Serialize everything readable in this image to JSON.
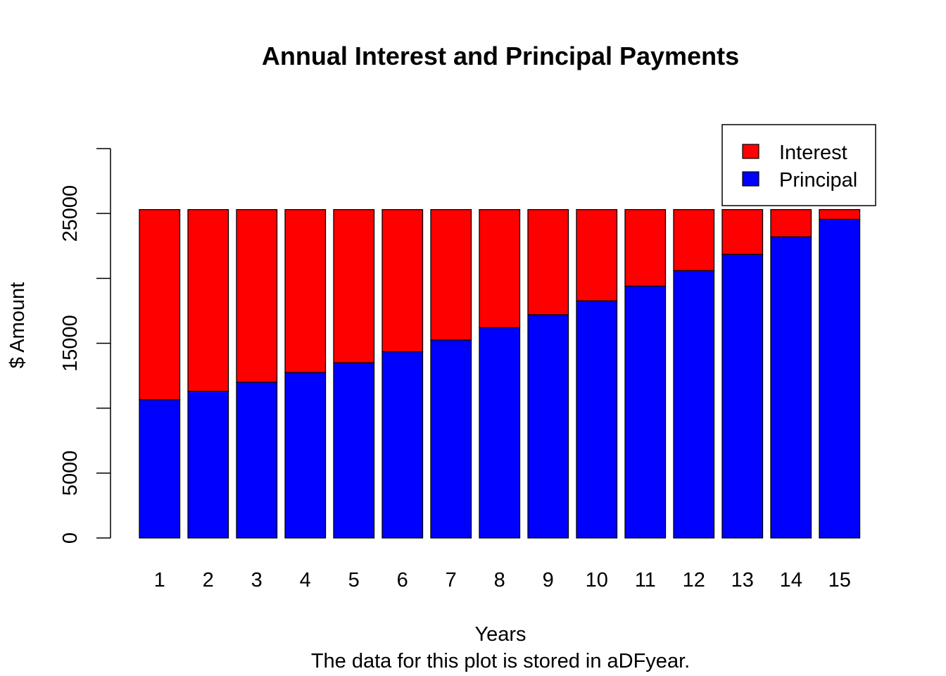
{
  "chart_data": {
    "type": "bar",
    "stacked": true,
    "title": "Annual Interest and Principal Payments",
    "xlabel": "Years",
    "ylabel": "$ Amount",
    "subtitle": "The data for this plot is stored in aDFyear.",
    "categories": [
      "1",
      "2",
      "3",
      "4",
      "5",
      "6",
      "7",
      "8",
      "9",
      "10",
      "11",
      "12",
      "13",
      "14",
      "15"
    ],
    "ylim": [
      0,
      30000
    ],
    "yticks": [
      0,
      5000,
      10000,
      15000,
      20000,
      25000,
      30000
    ],
    "ytick_labels": [
      "0",
      "5000",
      "",
      "15000",
      "",
      "25000",
      ""
    ],
    "series": [
      {
        "name": "Principal",
        "color": "#0000ff",
        "values": [
          10650,
          11300,
          12000,
          12750,
          13500,
          14350,
          15250,
          16200,
          17200,
          18270,
          19400,
          20600,
          21850,
          23200,
          24550
        ]
      },
      {
        "name": "Interest",
        "color": "#ff0000",
        "values": [
          14650,
          14000,
          13300,
          12550,
          11800,
          10950,
          10050,
          9100,
          8100,
          7030,
          5900,
          4700,
          3450,
          2100,
          750
        ]
      }
    ],
    "legend": {
      "position": "top-right",
      "entries": [
        {
          "label": "Interest",
          "color": "#ff0000"
        },
        {
          "label": "Principal",
          "color": "#0000ff"
        }
      ]
    },
    "grid": false
  }
}
